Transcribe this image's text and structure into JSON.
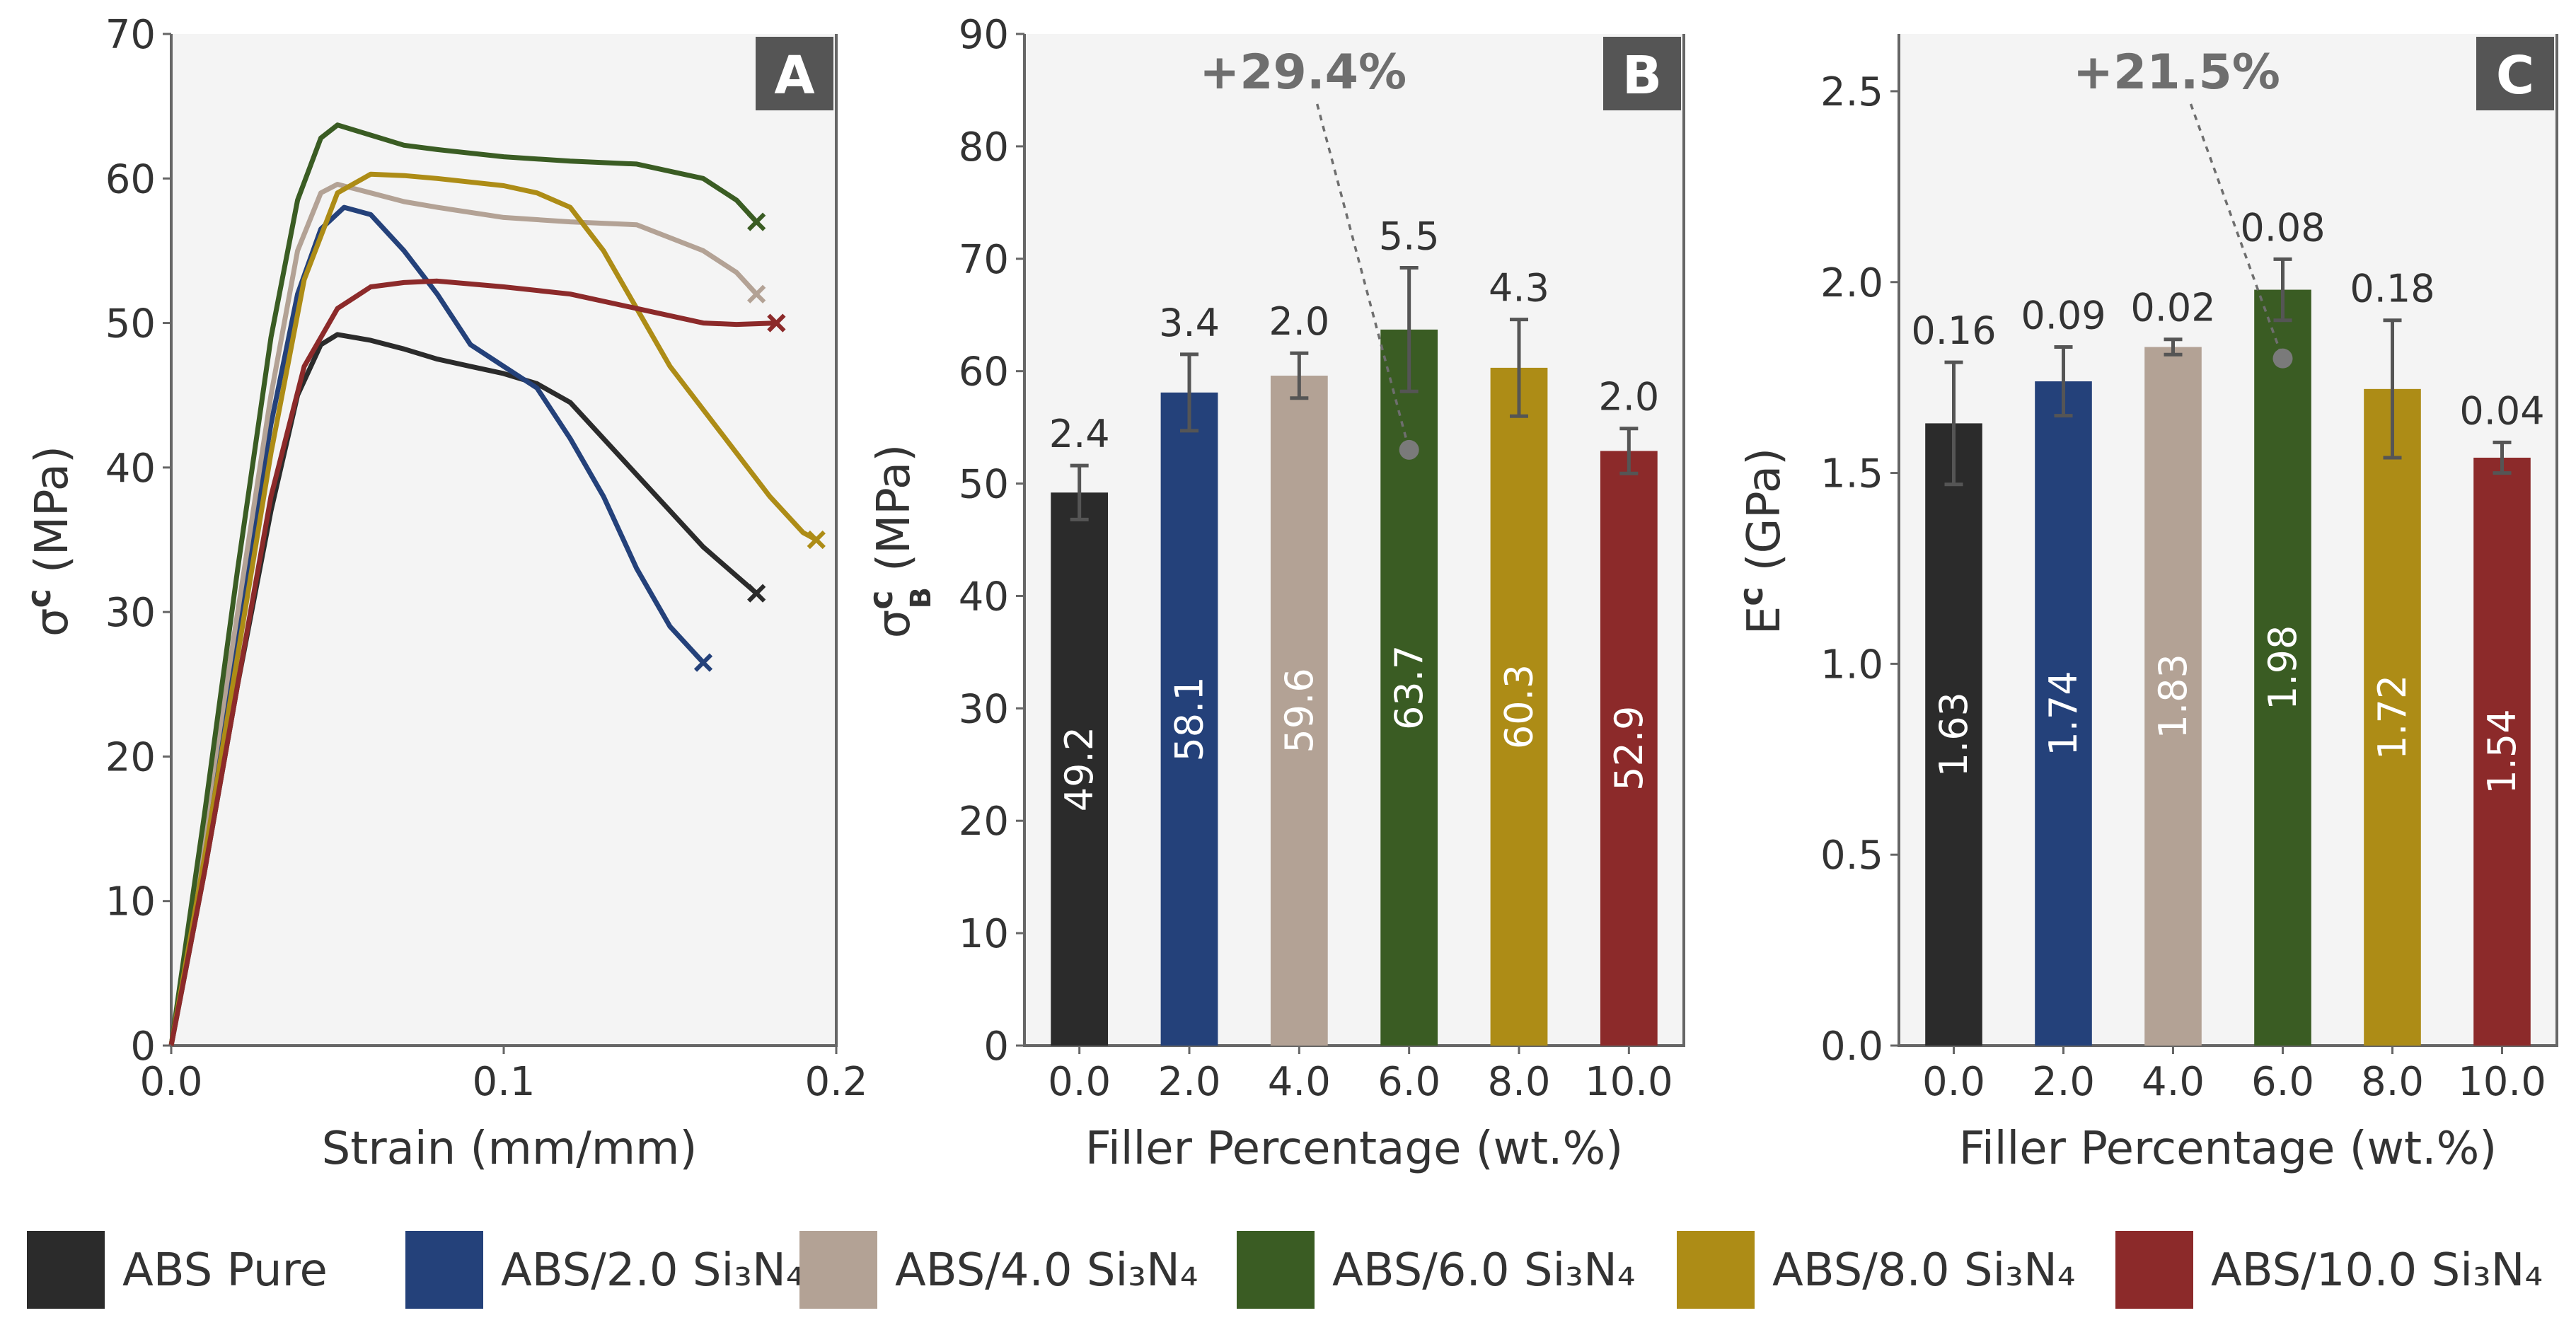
{
  "colors": [
    "#2b2b2b",
    "#24417a",
    "#b3a295",
    "#3a5c23",
    "#ad8c16",
    "#8c2a2a"
  ],
  "legend": [
    {
      "label": "ABS Pure"
    },
    {
      "label": "ABS/2.0 Si₃N₄"
    },
    {
      "label": "ABS/4.0 Si₃N₄"
    },
    {
      "label": "ABS/6.0 Si₃N₄"
    },
    {
      "label": "ABS/8.0 Si₃N₄"
    },
    {
      "label": "ABS/10.0 Si₃N₄"
    }
  ],
  "chart_data": [
    {
      "panel": "A",
      "type": "line",
      "xlabel": "Strain (mm/mm)",
      "ylabel": "σᶜ (MPa)",
      "xlim": [
        0,
        0.2
      ],
      "ylim": [
        0,
        70
      ],
      "xticks": [
        "0.0",
        "0.1",
        "0.2"
      ],
      "yticks": [
        "0",
        "10",
        "20",
        "30",
        "40",
        "50",
        "60",
        "70"
      ],
      "series": [
        {
          "name": "ABS Pure",
          "points": [
            [
              0,
              0
            ],
            [
              0.01,
              12
            ],
            [
              0.02,
              25
            ],
            [
              0.03,
              37
            ],
            [
              0.038,
              45
            ],
            [
              0.045,
              48.5
            ],
            [
              0.05,
              49.2
            ],
            [
              0.06,
              48.8
            ],
            [
              0.07,
              48.2
            ],
            [
              0.08,
              47.5
            ],
            [
              0.09,
              47
            ],
            [
              0.1,
              46.5
            ],
            [
              0.11,
              45.8
            ],
            [
              0.12,
              44.5
            ],
            [
              0.13,
              42
            ],
            [
              0.14,
              39.5
            ],
            [
              0.15,
              37
            ],
            [
              0.16,
              34.5
            ],
            [
              0.17,
              32.5
            ],
            [
              0.176,
              31.3
            ]
          ],
          "end": [
            0.176,
            31.3
          ]
        },
        {
          "name": "ABS/2.0 Si₃N₄",
          "points": [
            [
              0,
              0
            ],
            [
              0.01,
              14
            ],
            [
              0.02,
              29
            ],
            [
              0.03,
              43
            ],
            [
              0.038,
              52
            ],
            [
              0.045,
              56.5
            ],
            [
              0.052,
              58
            ],
            [
              0.06,
              57.5
            ],
            [
              0.07,
              55
            ],
            [
              0.08,
              52
            ],
            [
              0.09,
              48.5
            ],
            [
              0.1,
              47
            ],
            [
              0.11,
              45.5
            ],
            [
              0.12,
              42
            ],
            [
              0.13,
              38
            ],
            [
              0.14,
              33
            ],
            [
              0.15,
              29
            ],
            [
              0.16,
              26.5
            ]
          ],
          "end": [
            0.16,
            26.5
          ]
        },
        {
          "name": "ABS/4.0 Si₃N₄",
          "points": [
            [
              0,
              0
            ],
            [
              0.01,
              15
            ],
            [
              0.02,
              30
            ],
            [
              0.03,
              45
            ],
            [
              0.038,
              55
            ],
            [
              0.045,
              59
            ],
            [
              0.05,
              59.6
            ],
            [
              0.06,
              59
            ],
            [
              0.07,
              58.4
            ],
            [
              0.08,
              58
            ],
            [
              0.1,
              57.3
            ],
            [
              0.12,
              57
            ],
            [
              0.14,
              56.8
            ],
            [
              0.16,
              55
            ],
            [
              0.17,
              53.5
            ],
            [
              0.176,
              52
            ]
          ],
          "end": [
            0.176,
            52
          ]
        },
        {
          "name": "ABS/6.0 Si₃N₄",
          "points": [
            [
              0,
              0
            ],
            [
              0.01,
              16
            ],
            [
              0.02,
              33
            ],
            [
              0.03,
              49
            ],
            [
              0.038,
              58.5
            ],
            [
              0.045,
              62.8
            ],
            [
              0.05,
              63.7
            ],
            [
              0.06,
              63
            ],
            [
              0.07,
              62.3
            ],
            [
              0.08,
              62
            ],
            [
              0.1,
              61.5
            ],
            [
              0.12,
              61.2
            ],
            [
              0.14,
              61
            ],
            [
              0.16,
              60
            ],
            [
              0.17,
              58.5
            ],
            [
              0.176,
              57
            ]
          ],
          "end": [
            0.176,
            57
          ]
        },
        {
          "name": "ABS/8.0 Si₃N₄",
          "points": [
            [
              0,
              0
            ],
            [
              0.01,
              13
            ],
            [
              0.02,
              27
            ],
            [
              0.03,
              41
            ],
            [
              0.04,
              53
            ],
            [
              0.05,
              59
            ],
            [
              0.06,
              60.3
            ],
            [
              0.07,
              60.2
            ],
            [
              0.08,
              60
            ],
            [
              0.1,
              59.5
            ],
            [
              0.11,
              59
            ],
            [
              0.12,
              58
            ],
            [
              0.13,
              55
            ],
            [
              0.14,
              51
            ],
            [
              0.15,
              47
            ],
            [
              0.16,
              44
            ],
            [
              0.17,
              41
            ],
            [
              0.18,
              38
            ],
            [
              0.19,
              35.5
            ],
            [
              0.194,
              35
            ]
          ],
          "end": [
            0.194,
            35
          ]
        },
        {
          "name": "ABS/10.0 Si₃N₄",
          "points": [
            [
              0,
              0
            ],
            [
              0.01,
              12
            ],
            [
              0.02,
              25
            ],
            [
              0.03,
              38
            ],
            [
              0.04,
              47
            ],
            [
              0.05,
              51
            ],
            [
              0.06,
              52.5
            ],
            [
              0.07,
              52.8
            ],
            [
              0.08,
              52.9
            ],
            [
              0.1,
              52.5
            ],
            [
              0.12,
              52
            ],
            [
              0.14,
              51
            ],
            [
              0.16,
              50
            ],
            [
              0.17,
              49.9
            ],
            [
              0.182,
              50
            ]
          ],
          "end": [
            0.182,
            50
          ]
        }
      ]
    },
    {
      "panel": "B",
      "type": "bar",
      "categories": [
        "0.0",
        "2.0",
        "4.0",
        "6.0",
        "8.0",
        "10.0"
      ],
      "values": [
        49.2,
        58.1,
        59.6,
        63.7,
        60.3,
        52.9
      ],
      "value_labels": [
        "49.2",
        "58.1",
        "59.6",
        "63.7",
        "60.3",
        "52.9"
      ],
      "errors": [
        2.4,
        3.4,
        2.0,
        5.5,
        4.3,
        2.0
      ],
      "error_labels": [
        "2.4",
        "3.4",
        "2.0",
        "5.5",
        "4.3",
        "2.0"
      ],
      "xlabel": "Filler Percentage (wt.%)",
      "ylabel": "σᶜB (MPa)",
      "ylim": [
        0,
        90
      ],
      "yticks": [
        "0",
        "10",
        "20",
        "30",
        "40",
        "50",
        "60",
        "70",
        "80",
        "90"
      ],
      "annotation": {
        "text": "+29.4%",
        "target_category": "6.0",
        "target_value": 53
      },
      "badge": "B"
    },
    {
      "panel": "C",
      "type": "bar",
      "categories": [
        "0.0",
        "2.0",
        "4.0",
        "6.0",
        "8.0",
        "10.0"
      ],
      "values": [
        1.63,
        1.74,
        1.83,
        1.98,
        1.72,
        1.54
      ],
      "value_labels": [
        "1.63",
        "1.74",
        "1.83",
        "1.98",
        "1.72",
        "1.54"
      ],
      "errors": [
        0.16,
        0.09,
        0.02,
        0.08,
        0.18,
        0.04
      ],
      "error_labels": [
        "0.16",
        "0.09",
        "0.02",
        "0.08",
        "0.18",
        "0.04"
      ],
      "xlabel": "Filler Percentage (wt.%)",
      "ylabel": "Eᶜ (GPa)",
      "ylim": [
        0,
        2.65
      ],
      "yticks": [
        "0.0",
        "0.5",
        "1.0",
        "1.5",
        "2.0",
        "2.5"
      ],
      "annotation": {
        "text": "+21.5%",
        "target_category": "6.0",
        "target_value": 1.8
      },
      "badge": "C"
    }
  ],
  "badges": {
    "a": "A",
    "b": "B",
    "c": "C"
  },
  "axis_text": {
    "a_ylabel_sym": "σ",
    "a_ylabel_sup": "c",
    "a_ylabel_unit": "(MPa)",
    "b_ylabel_sym": "σ",
    "b_ylabel_sup": "c",
    "b_ylabel_sub": "B",
    "b_ylabel_unit": "(MPa)",
    "c_ylabel_sym": "E",
    "c_ylabel_sup": "c",
    "c_ylabel_unit": "(GPa)"
  }
}
